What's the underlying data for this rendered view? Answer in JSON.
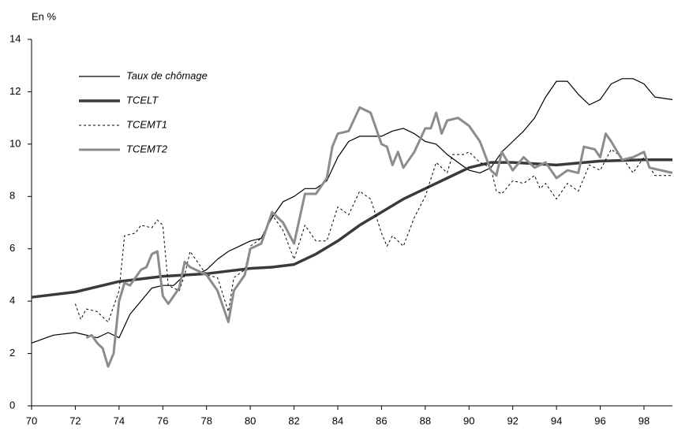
{
  "chart_data": {
    "type": "line",
    "ylabel": "En %",
    "xlim": [
      70,
      99.3
    ],
    "ylim": [
      0,
      14
    ],
    "xticks": [
      70,
      72,
      74,
      76,
      78,
      80,
      82,
      84,
      86,
      88,
      90,
      92,
      94,
      96,
      98
    ],
    "yticks": [
      0,
      2,
      4,
      6,
      8,
      10,
      12,
      14
    ],
    "legend": "top-left",
    "series": [
      {
        "name": "Taux de chômage",
        "color": "#000000",
        "width": 1.2,
        "dash": "none",
        "x": [
          70,
          71,
          72,
          73,
          73.5,
          74,
          74.5,
          75,
          75.5,
          76,
          76.5,
          77,
          77.5,
          78,
          78.5,
          79,
          79.5,
          80,
          80.5,
          81,
          81.5,
          82,
          82.5,
          83,
          83.5,
          84,
          84.5,
          85,
          85.5,
          86,
          86.5,
          87,
          87.5,
          88,
          88.5,
          89,
          89.5,
          90,
          90.5,
          91,
          91.5,
          92,
          92.5,
          93,
          93.5,
          94,
          94.5,
          95,
          95.5,
          96,
          96.5,
          97,
          97.5,
          98,
          98.5,
          99.3
        ],
        "values": [
          2.4,
          2.7,
          2.8,
          2.6,
          2.8,
          2.6,
          3.5,
          4.0,
          4.5,
          4.6,
          4.6,
          5.0,
          5.0,
          5.2,
          5.6,
          5.9,
          6.1,
          6.3,
          6.4,
          7.2,
          7.8,
          8.0,
          8.3,
          8.3,
          8.6,
          9.5,
          10.1,
          10.3,
          10.3,
          10.3,
          10.5,
          10.6,
          10.4,
          10.1,
          10.0,
          9.6,
          9.3,
          9.0,
          8.9,
          9.1,
          9.7,
          10.1,
          10.5,
          11.0,
          11.8,
          12.4,
          12.4,
          11.9,
          11.5,
          11.7,
          12.3,
          12.5,
          12.5,
          12.3,
          11.8,
          11.7
        ]
      },
      {
        "name": "TCELT",
        "color": "#3a3a3a",
        "width": 3.5,
        "dash": "none",
        "x": [
          70,
          72,
          74,
          76,
          78,
          80,
          81,
          82,
          83,
          84,
          85,
          86,
          87,
          88,
          89,
          90,
          91,
          92,
          94,
          96,
          98,
          99.3
        ],
        "values": [
          4.15,
          4.35,
          4.75,
          4.95,
          5.05,
          5.25,
          5.3,
          5.4,
          5.8,
          6.3,
          6.9,
          7.4,
          7.9,
          8.3,
          8.7,
          9.1,
          9.3,
          9.3,
          9.2,
          9.35,
          9.4,
          9.4
        ]
      },
      {
        "name": "TCEMT1",
        "color": "#000000",
        "width": 1,
        "dash": "3,3",
        "x": [
          72,
          72.25,
          72.5,
          73,
          73.5,
          74,
          74.25,
          74.75,
          75,
          75.5,
          75.75,
          76,
          76.25,
          76.75,
          77,
          77.25,
          77.75,
          78,
          78.5,
          79,
          79.25,
          79.75,
          80,
          80.5,
          81,
          81.5,
          82,
          82.5,
          83,
          83.5,
          84,
          84.5,
          85,
          85.5,
          86,
          86.25,
          86.5,
          87,
          87.5,
          88,
          88.5,
          89,
          89.25,
          89.75,
          90,
          90.5,
          91,
          91.25,
          91.5,
          92,
          92.5,
          93,
          93.25,
          93.5,
          94,
          94.5,
          95,
          95.5,
          96,
          96.5,
          97,
          97.5,
          98,
          98.5,
          99.3
        ],
        "values": [
          3.9,
          3.3,
          3.7,
          3.6,
          3.2,
          4.4,
          6.5,
          6.6,
          6.9,
          6.8,
          7.1,
          6.9,
          4.6,
          4.4,
          5.0,
          5.9,
          5.3,
          5.0,
          4.9,
          3.6,
          4.9,
          5.2,
          6.1,
          6.4,
          7.3,
          6.7,
          5.6,
          6.9,
          6.3,
          6.3,
          7.6,
          7.3,
          8.2,
          7.9,
          6.6,
          6.1,
          6.5,
          6.1,
          7.2,
          8.0,
          9.3,
          8.9,
          9.6,
          9.6,
          9.7,
          9.3,
          9.1,
          8.2,
          8.1,
          8.6,
          8.5,
          8.8,
          8.3,
          8.5,
          7.9,
          8.5,
          8.2,
          9.2,
          9.0,
          9.8,
          9.5,
          8.9,
          9.5,
          8.8,
          8.8
        ]
      },
      {
        "name": "TCEMT2",
        "color": "#8c8c8c",
        "width": 3,
        "dash": "none",
        "x": [
          72.5,
          72.75,
          73,
          73.25,
          73.5,
          73.75,
          74,
          74.25,
          74.5,
          75,
          75.25,
          75.5,
          75.75,
          76,
          76.25,
          76.75,
          77,
          77.25,
          77.75,
          78,
          78.5,
          79,
          79.25,
          79.75,
          80,
          80.5,
          81,
          81.5,
          82,
          82.5,
          83,
          83.5,
          83.75,
          84,
          84.5,
          85,
          85.5,
          86,
          86.25,
          86.5,
          86.75,
          87,
          87.5,
          88,
          88.25,
          88.5,
          88.75,
          89,
          89.5,
          90,
          90.5,
          91,
          91.25,
          91.5,
          92,
          92.5,
          93,
          93.5,
          94,
          94.5,
          95,
          95.25,
          95.75,
          96,
          96.25,
          96.5,
          97,
          97.5,
          98,
          98.25,
          99.3
        ],
        "values": [
          2.6,
          2.7,
          2.4,
          2.2,
          1.5,
          2.0,
          4.0,
          4.7,
          4.6,
          5.2,
          5.3,
          5.8,
          5.9,
          4.2,
          3.9,
          4.5,
          5.5,
          5.3,
          5.1,
          5.0,
          4.4,
          3.2,
          4.4,
          5.0,
          6.0,
          6.2,
          7.4,
          7.0,
          6.2,
          8.1,
          8.1,
          8.7,
          9.9,
          10.4,
          10.5,
          11.4,
          11.2,
          10.0,
          9.9,
          9.2,
          9.7,
          9.1,
          9.7,
          10.6,
          10.6,
          11.2,
          10.4,
          10.9,
          11.0,
          10.7,
          10.1,
          9.0,
          8.8,
          9.7,
          9.0,
          9.5,
          9.1,
          9.3,
          8.7,
          9.0,
          8.9,
          9.9,
          9.8,
          9.5,
          10.4,
          10.1,
          9.4,
          9.5,
          9.7,
          9.1,
          8.9
        ]
      }
    ]
  }
}
